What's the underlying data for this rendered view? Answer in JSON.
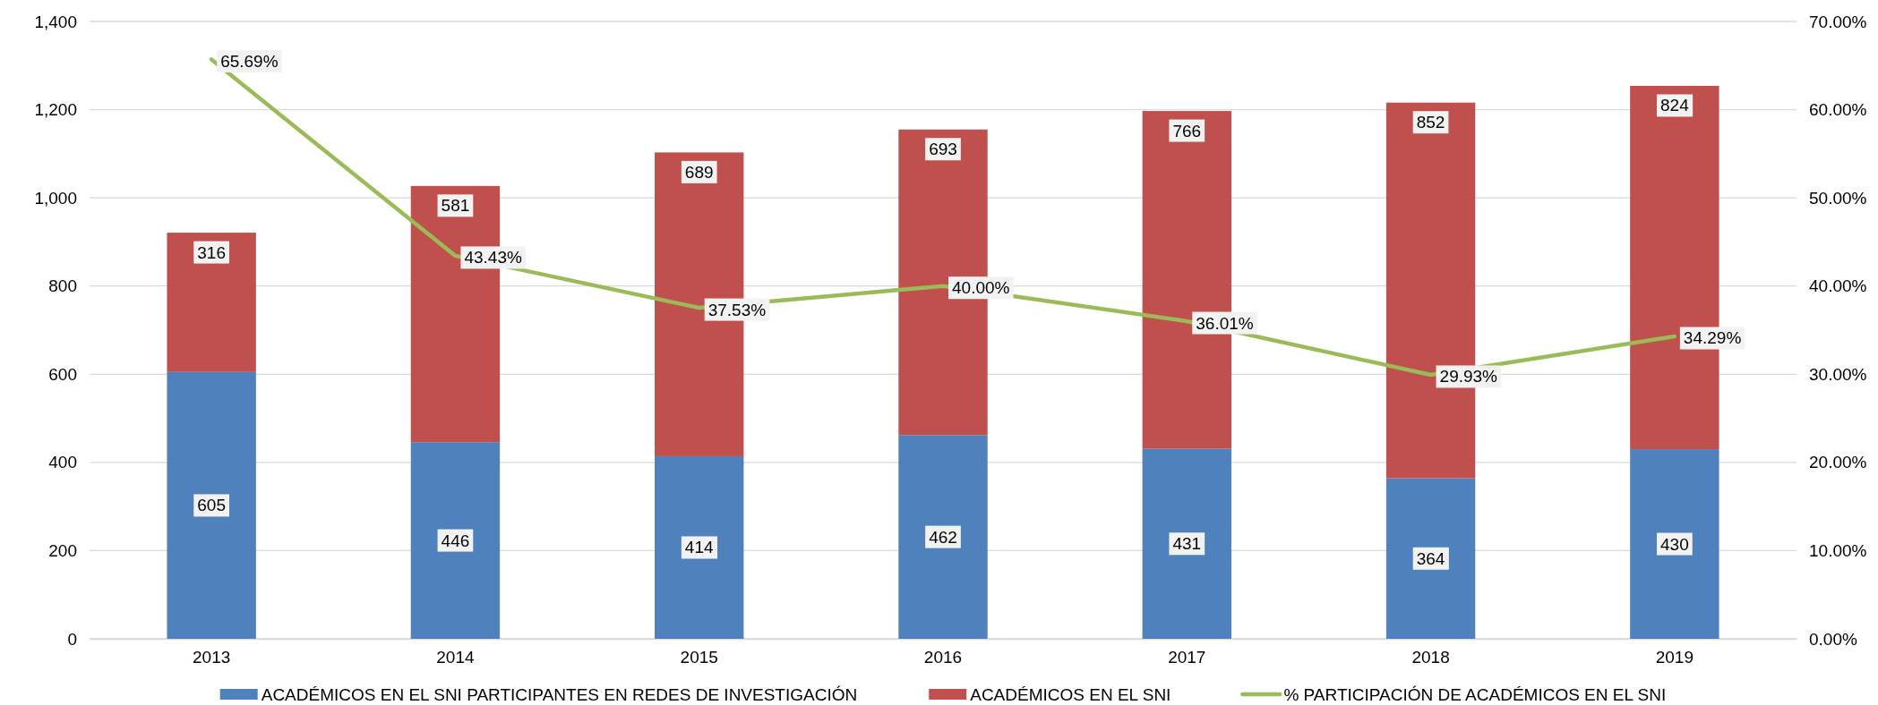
{
  "chart_data": {
    "type": "bar",
    "stacked": true,
    "categories": [
      "2013",
      "2014",
      "2015",
      "2016",
      "2017",
      "2018",
      "2019"
    ],
    "series": [
      {
        "name": "ACADÉMICOS EN EL SNI PARTICIPANTES EN REDES DE INVESTIGACIÓN",
        "color": "#4f81bd",
        "values": [
          605,
          446,
          414,
          462,
          431,
          364,
          430
        ],
        "value_labels": [
          "605",
          "446",
          "414",
          "462",
          "431",
          "364",
          "430"
        ]
      },
      {
        "name": "ACADÉMICOS EN EL SNI",
        "color": "#c0504d",
        "values": [
          316,
          581,
          689,
          693,
          766,
          852,
          824
        ],
        "value_labels": [
          "316",
          "581",
          "689",
          "693",
          "766",
          "852",
          "824"
        ]
      },
      {
        "name": "% PARTICIPACIÓN DE ACADÉMICOS EN EL SNI",
        "type": "line",
        "axis": "y2",
        "color": "#9bbb59",
        "values": [
          65.69,
          43.43,
          37.53,
          40.0,
          36.01,
          29.93,
          34.29
        ],
        "value_labels": [
          "65.69%",
          "43.43%",
          "37.53%",
          "40.00%",
          "36.01%",
          "29.93%",
          "34.29%"
        ]
      }
    ],
    "ylim": [
      0,
      1400
    ],
    "yticks": [
      0,
      200,
      400,
      600,
      800,
      {
        "value": 1000,
        "label": "1,000"
      },
      {
        "value": 1200,
        "label": "1,200"
      },
      {
        "value": 1400,
        "label": "1,400"
      }
    ],
    "y2lim": [
      0,
      70
    ],
    "y2ticks": [
      {
        "value": 0,
        "label": "0.00%"
      },
      {
        "value": 10,
        "label": "10.00%"
      },
      {
        "value": 20,
        "label": "20.00%"
      },
      {
        "value": 30,
        "label": "30.00%"
      },
      {
        "value": 40,
        "label": "40.00%"
      },
      {
        "value": 50,
        "label": "50.00%"
      },
      {
        "value": 60,
        "label": "60.00%"
      },
      {
        "value": 70,
        "label": "70.00%"
      }
    ],
    "grid": "y",
    "legend": "bottom",
    "marker": "none",
    "line_style": "solid"
  }
}
